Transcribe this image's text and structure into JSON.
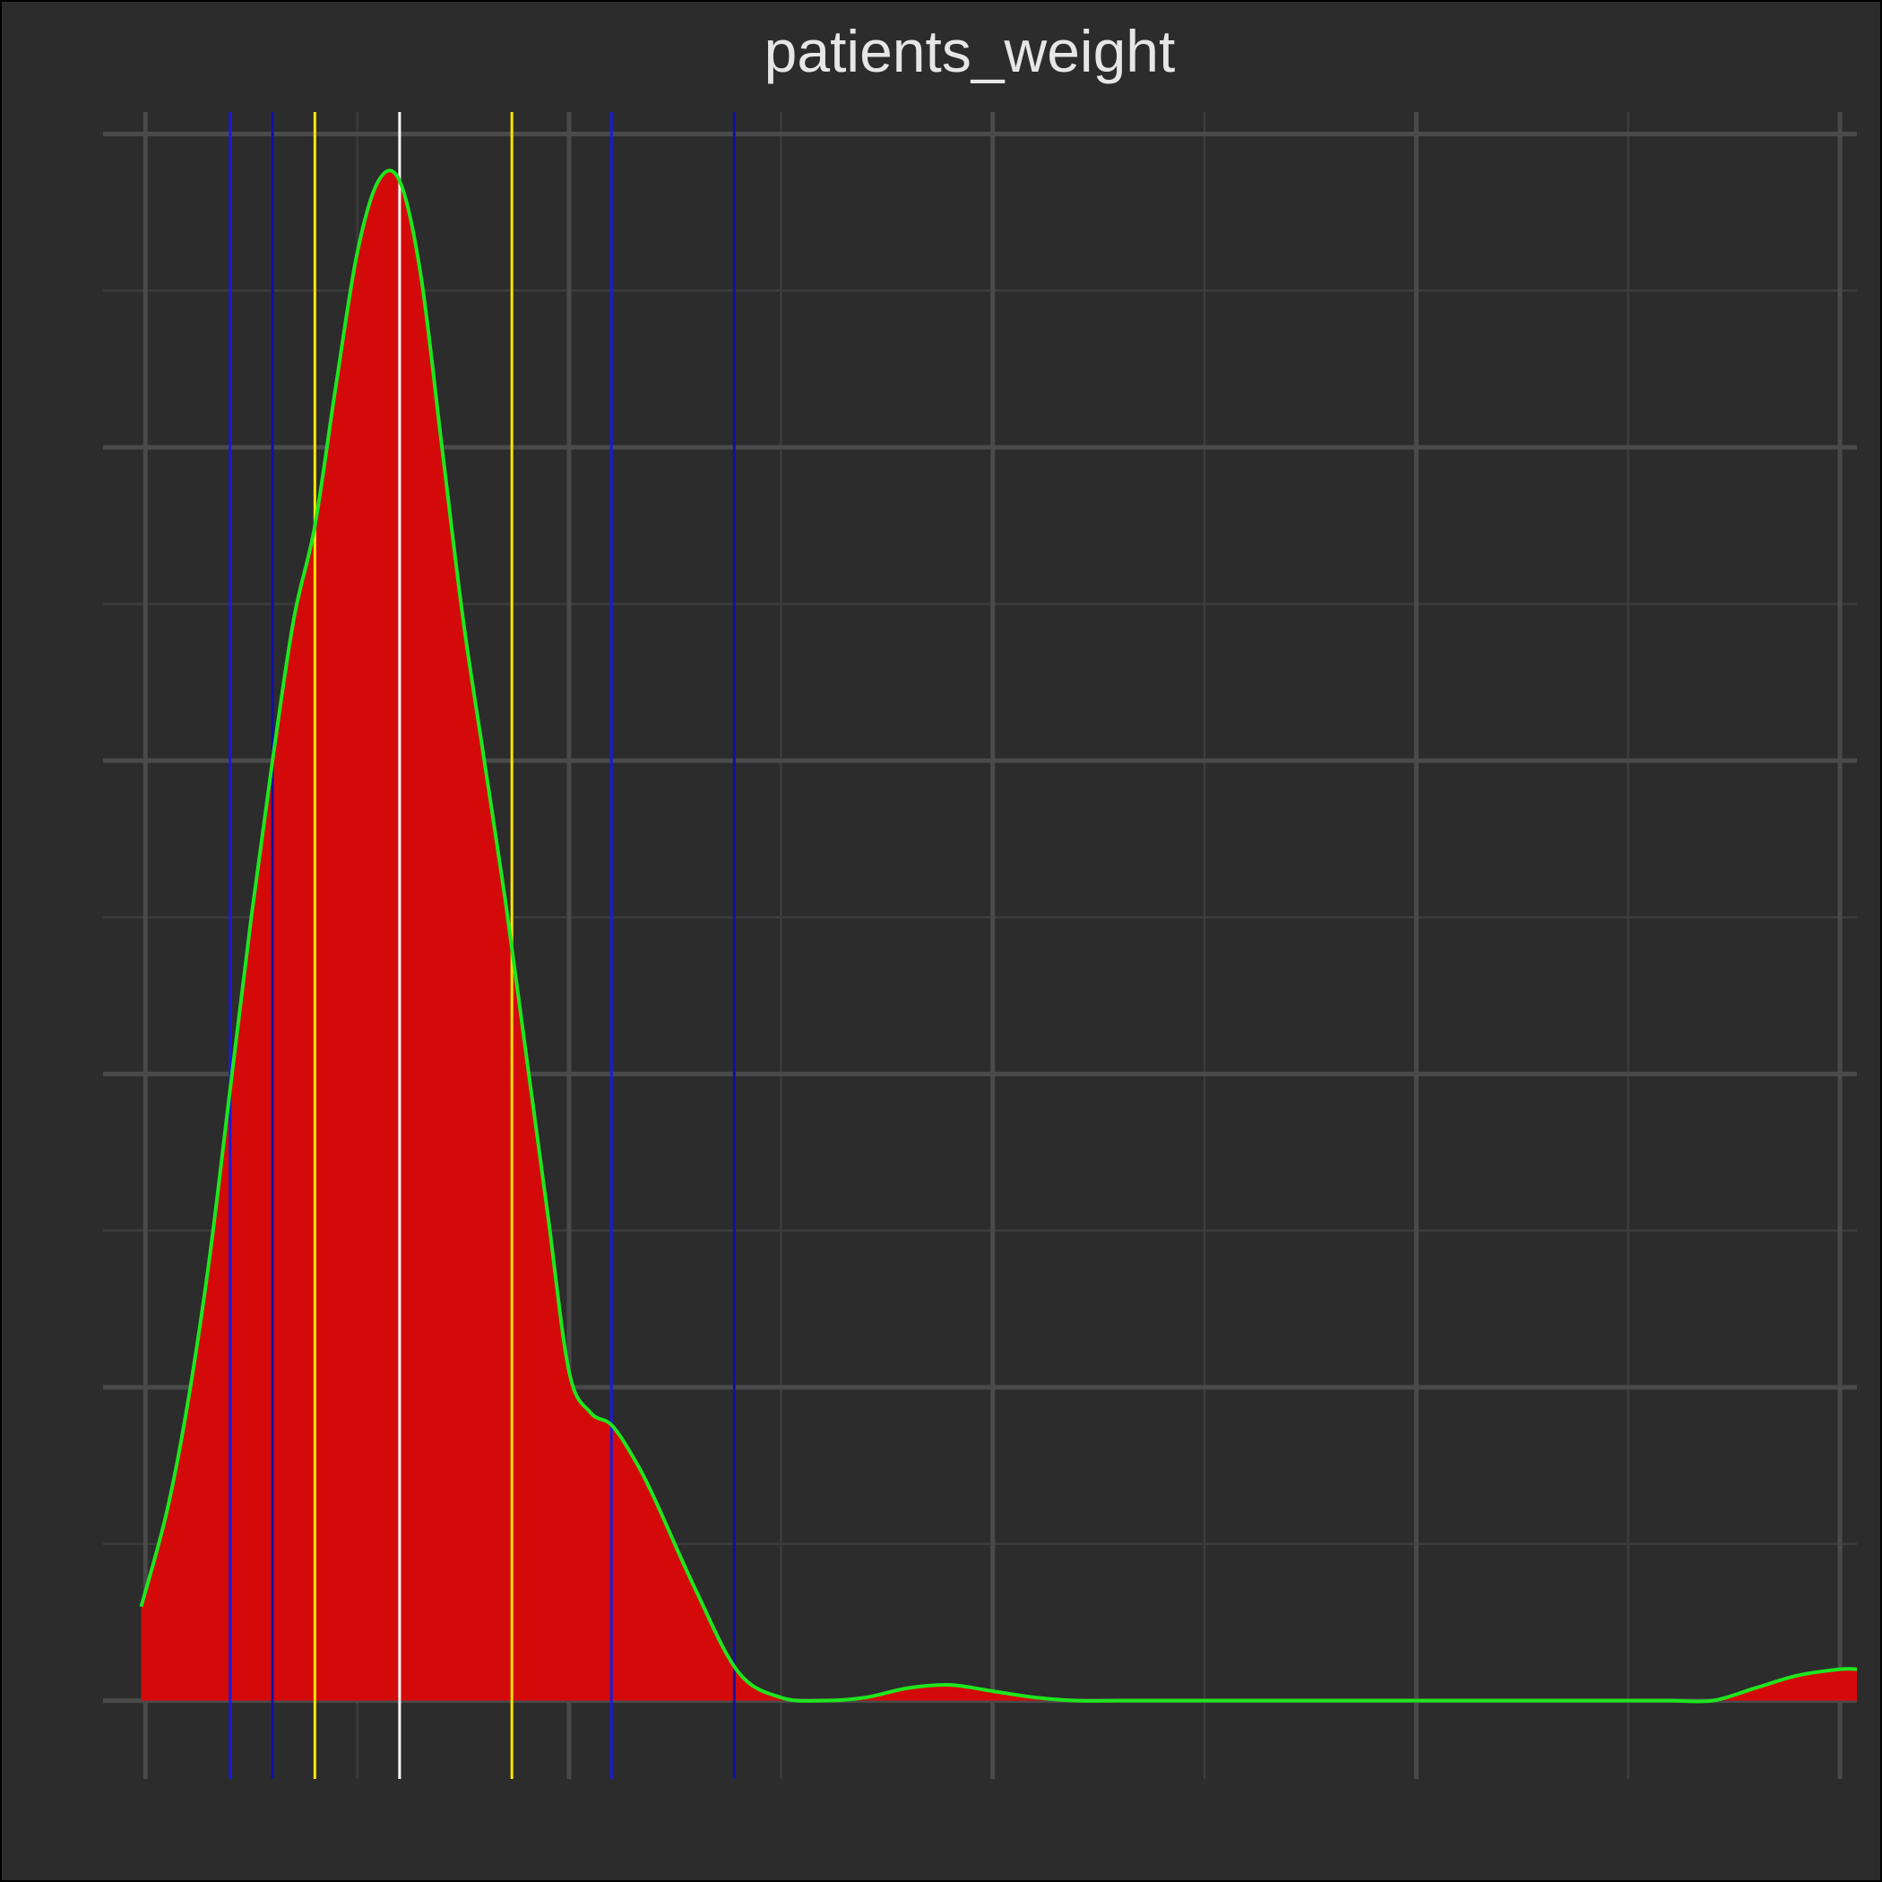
{
  "chart_data": {
    "type": "area",
    "title": "patients_weight",
    "xlabel": "",
    "ylabel": "",
    "grid": true,
    "legend": "none",
    "colors": {
      "background": "#2c2c2c",
      "border": "#000000",
      "grid_major": "#4a4a4a",
      "grid_minor": "#3c3c3c",
      "fill": "#d40a0a",
      "curve": "#1ee61e",
      "mean_line": "#ffffff",
      "one_sd_lines": "#ffe600",
      "two_sd_lines": "#1a1ad8",
      "percentile_lines": "#1010a0",
      "title": "#e6e6e6"
    },
    "x_range": [
      -1,
      40.4
    ],
    "y_range": [
      -0.0025,
      0.0507
    ],
    "x_major_ticks": [
      0,
      10,
      20,
      30,
      40
    ],
    "x_minor_ticks": [
      5,
      15,
      25,
      35
    ],
    "y_major_ticks": [
      0,
      0.01,
      0.02,
      0.03,
      0.04,
      0.05
    ],
    "y_minor_ticks": [
      0.005,
      0.015,
      0.025,
      0.035,
      0.045
    ],
    "density": {
      "x": [
        -0.1,
        0.5,
        1.0,
        1.5,
        2.0,
        2.5,
        3.0,
        3.5,
        4.0,
        4.5,
        5.0,
        5.5,
        6.0,
        6.5,
        7.0,
        7.5,
        8.0,
        8.5,
        9.0,
        9.5,
        10.0,
        10.5,
        11.0,
        11.5,
        12.0,
        13.0,
        14.0,
        15.0,
        16.0,
        17.0,
        18.0,
        19.0,
        20.0,
        21.0,
        22.0,
        23.0,
        24.0,
        25.0,
        26.0,
        27.0,
        28.0,
        29.0,
        30.0,
        31.0,
        32.0,
        33.0,
        34.0,
        35.0,
        36.0,
        37.0,
        38.0,
        39.0,
        40.0,
        40.4
      ],
      "y": [
        0.003,
        0.006,
        0.0095,
        0.014,
        0.0195,
        0.025,
        0.03,
        0.0345,
        0.0375,
        0.042,
        0.0462,
        0.0485,
        0.0485,
        0.0455,
        0.04,
        0.0345,
        0.03,
        0.0255,
        0.0205,
        0.0155,
        0.0105,
        0.0092,
        0.0088,
        0.0078,
        0.0065,
        0.0035,
        0.0009,
        0.0001,
        0.0,
        0.0001,
        0.0004,
        0.0005,
        0.0003,
        0.0001,
        0.0,
        0.0,
        0.0,
        0.0,
        0.0,
        0.0,
        0.0,
        0.0,
        0.0,
        0.0,
        0.0,
        0.0,
        0.0,
        0.0,
        0.0,
        0.0,
        0.0004,
        0.0008,
        0.001,
        0.001
      ]
    },
    "vertical_lines": [
      {
        "x": 6.0,
        "role": "mean",
        "color": "#ffffff"
      },
      {
        "x": 4.0,
        "role": "one_sd",
        "color": "#ffe600"
      },
      {
        "x": 8.65,
        "role": "one_sd",
        "color": "#ffe600"
      },
      {
        "x": 2.0,
        "role": "two_sd",
        "color": "#1a1ad8"
      },
      {
        "x": 11.0,
        "role": "two_sd",
        "color": "#1a1ad8"
      },
      {
        "x": 3.0,
        "role": "percentile",
        "color": "#1010a0"
      },
      {
        "x": 13.9,
        "role": "percentile",
        "color": "#1010a0"
      }
    ]
  }
}
